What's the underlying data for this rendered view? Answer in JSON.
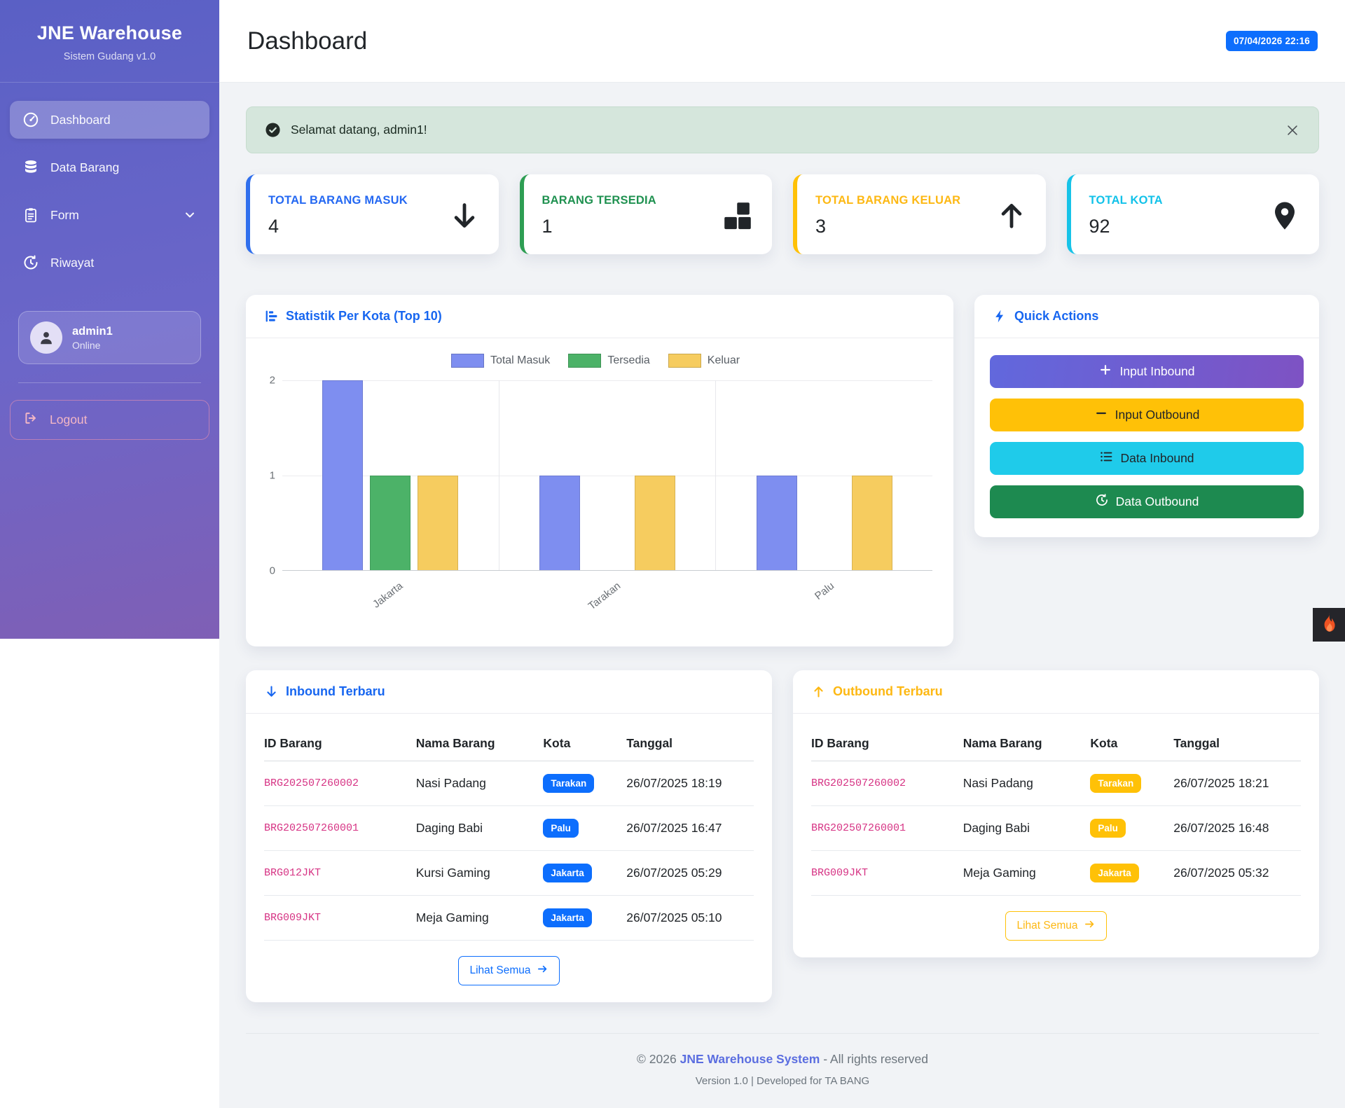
{
  "sidebar": {
    "brand": "JNE Warehouse",
    "subtitle": "Sistem Gudang v1.0",
    "items": [
      {
        "label": "Dashboard",
        "icon": "speedometer-icon",
        "active": true
      },
      {
        "label": "Data Barang",
        "icon": "database-icon",
        "active": false
      },
      {
        "label": "Form",
        "icon": "clipboard-icon",
        "active": false,
        "chevron": true
      },
      {
        "label": "Riwayat",
        "icon": "history-icon",
        "active": false
      }
    ],
    "user": {
      "name": "admin1",
      "status": "Online"
    },
    "logout_label": "Logout"
  },
  "header": {
    "title": "Dashboard",
    "datetime_badge": "07/04/2026 22:16"
  },
  "alert": {
    "message": "Selamat datang, admin1!"
  },
  "stats": [
    {
      "label": "TOTAL BARANG MASUK",
      "value": "4",
      "color": "#2f6fed",
      "icon": "arrow-down-icon"
    },
    {
      "label": "BARANG TERSEDIA",
      "value": "1",
      "color": "#2e9e53",
      "icon": "boxes-icon"
    },
    {
      "label": "TOTAL BARANG KELUAR",
      "value": "3",
      "color": "#ffc107",
      "icon": "arrow-up-icon"
    },
    {
      "label": "TOTAL KOTA",
      "value": "92",
      "color": "#17c3e8",
      "icon": "geo-pin-icon"
    }
  ],
  "chart_card": {
    "title": "Statistik Per Kota (Top 10)"
  },
  "chart_data": {
    "type": "bar",
    "title": "Statistik Per Kota (Top 10)",
    "categories": [
      "Jakarta",
      "Tarakan",
      "Palu"
    ],
    "series": [
      {
        "name": "Total Masuk",
        "color": "#7e8ef0",
        "values": [
          2,
          1,
          1
        ]
      },
      {
        "name": "Tersedia",
        "color": "#4cb268",
        "values": [
          1,
          0,
          0
        ]
      },
      {
        "name": "Keluar",
        "color": "#f6cc5f",
        "values": [
          1,
          1,
          1
        ]
      }
    ],
    "ylim": [
      0,
      2
    ],
    "yticks": [
      0,
      1,
      2
    ],
    "xlabel": "",
    "ylabel": "",
    "grid": true,
    "legend_position": "top"
  },
  "quick_actions": {
    "title": "Quick Actions",
    "buttons": [
      {
        "label": "Input Inbound",
        "icon": "plus-icon",
        "bg": "linear-purple",
        "text_color": "#ffffff"
      },
      {
        "label": "Input Outbound",
        "icon": "minus-icon",
        "bg": "#ffc107",
        "text_color": "#212529"
      },
      {
        "label": "Data Inbound",
        "icon": "list-icon",
        "bg": "#1fcbea",
        "text_color": "#212529"
      },
      {
        "label": "Data Outbound",
        "icon": "history-icon",
        "bg": "#1d8a50",
        "text_color": "#ffffff"
      }
    ]
  },
  "inbound": {
    "title": "Inbound Terbaru",
    "columns": [
      "ID Barang",
      "Nama Barang",
      "Kota",
      "Tanggal"
    ],
    "badge_color": "#0d6efd",
    "rows": [
      {
        "id": "BRG202507260002",
        "name": "Nasi Padang",
        "kota": "Tarakan",
        "tanggal": "26/07/2025 18:19"
      },
      {
        "id": "BRG202507260001",
        "name": "Daging Babi",
        "kota": "Palu",
        "tanggal": "26/07/2025 16:47"
      },
      {
        "id": "BRG012JKT",
        "name": "Kursi Gaming",
        "kota": "Jakarta",
        "tanggal": "26/07/2025 05:29"
      },
      {
        "id": "BRG009JKT",
        "name": "Meja Gaming",
        "kota": "Jakarta",
        "tanggal": "26/07/2025 05:10"
      }
    ],
    "link_label": "Lihat Semua"
  },
  "outbound": {
    "title": "Outbound Terbaru",
    "columns": [
      "ID Barang",
      "Nama Barang",
      "Kota",
      "Tanggal"
    ],
    "badge_color": "#ffc107",
    "rows": [
      {
        "id": "BRG202507260002",
        "name": "Nasi Padang",
        "kota": "Tarakan",
        "tanggal": "26/07/2025 18:21"
      },
      {
        "id": "BRG202507260001",
        "name": "Daging Babi",
        "kota": "Palu",
        "tanggal": "26/07/2025 16:48"
      },
      {
        "id": "BRG009JKT",
        "name": "Meja Gaming",
        "kota": "Jakarta",
        "tanggal": "26/07/2025 05:32"
      }
    ],
    "link_label": "Lihat Semua"
  },
  "footer": {
    "copyright_prefix": "© 2026",
    "brand_link": "JNE Warehouse System",
    "copyright_suffix": "- All rights reserved",
    "version_line": "Version 1.0 | Developed for TA BANG"
  }
}
